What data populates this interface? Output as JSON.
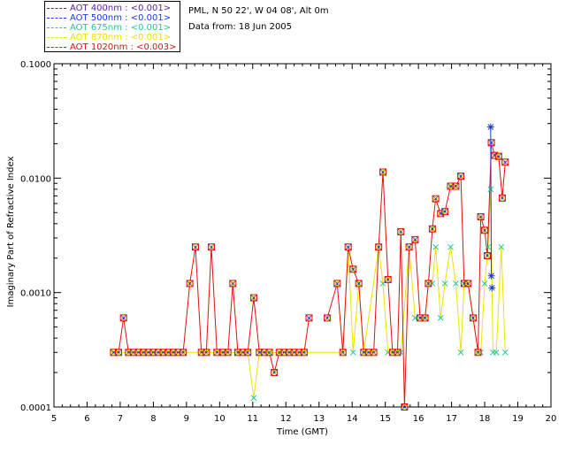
{
  "header": {
    "site": "PML, N 50 22', W 04 08', Alt 0m",
    "date": "Data from: 18 Jun 2005"
  },
  "legend": [
    {
      "label": "AOT  400nm : <0.001>",
      "color": "#5a1ea0"
    },
    {
      "label": "AOT  500nm : <0.001>",
      "color": "#1a3cdc"
    },
    {
      "label": "AOT  675nm : <0.001>",
      "color": "#19c8a0"
    },
    {
      "label": "AOT  870nm : <0.001>",
      "color": "#f0e000"
    },
    {
      "label": "AOT 1020nm : <0.003>",
      "color": "#e01010"
    }
  ],
  "chart_data": {
    "type": "line",
    "title": "",
    "xlabel": "Time (GMT)",
    "ylabel": "Imaginary Part of Refractive Index",
    "xlim": [
      5,
      20
    ],
    "ylim": [
      0.0001,
      0.1
    ],
    "yscale": "log",
    "xticks": [
      "5",
      "6",
      "7",
      "8",
      "9",
      "10",
      "11",
      "12",
      "13",
      "14",
      "15",
      "16",
      "17",
      "18",
      "19",
      "20"
    ],
    "yticks": [
      "0.0001",
      "0.0010",
      "0.0100",
      "0.1000"
    ],
    "series": [
      {
        "name": "AOT 1020nm : <0.003>",
        "color": "#e01010",
        "points": [
          [
            6.8,
            0.0003
          ],
          [
            6.95,
            0.0003
          ],
          [
            7.1,
            0.0006
          ],
          [
            7.25,
            0.0003
          ],
          [
            7.4,
            0.0003
          ],
          [
            7.55,
            0.0003
          ],
          [
            7.7,
            0.0003
          ],
          [
            7.85,
            0.0003
          ],
          [
            8.0,
            0.0003
          ],
          [
            8.15,
            0.0003
          ],
          [
            8.3,
            0.0003
          ],
          [
            8.45,
            0.0003
          ],
          [
            8.6,
            0.0003
          ],
          [
            8.75,
            0.0003
          ],
          [
            8.9,
            0.0003
          ],
          [
            9.1,
            0.0012
          ],
          [
            9.27,
            0.0025
          ],
          [
            9.45,
            0.0003
          ],
          [
            9.6,
            0.0003
          ],
          [
            9.75,
            0.0025
          ],
          [
            9.92,
            0.0003
          ],
          [
            10.1,
            0.0003
          ],
          [
            10.25,
            0.0003
          ],
          [
            10.4,
            0.0012
          ],
          [
            10.55,
            0.0003
          ],
          [
            10.7,
            0.0003
          ],
          [
            10.85,
            0.0003
          ],
          [
            11.03,
            0.0009
          ],
          [
            11.2,
            0.0003
          ],
          [
            11.35,
            0.0003
          ],
          [
            11.5,
            0.0003
          ],
          [
            11.65,
            0.0002
          ],
          [
            11.8,
            0.0003
          ],
          [
            11.95,
            0.0003
          ],
          [
            12.1,
            0.0003
          ],
          [
            12.25,
            0.0003
          ],
          [
            12.4,
            0.0003
          ],
          [
            12.55,
            0.0003
          ],
          [
            12.7,
            0.0006
          ],
          [
            null,
            null
          ],
          [
            13.25,
            0.0006
          ],
          [
            13.55,
            0.0012
          ],
          [
            13.72,
            0.0003
          ],
          [
            13.88,
            0.0025
          ],
          [
            14.03,
            0.0016
          ],
          [
            14.2,
            0.0012
          ],
          [
            14.35,
            0.0003
          ],
          [
            14.5,
            0.0003
          ],
          [
            14.65,
            0.0003
          ],
          [
            14.8,
            0.0025
          ],
          [
            14.93,
            0.0113
          ],
          [
            15.08,
            0.0013
          ],
          [
            15.22,
            0.0003
          ],
          [
            15.37,
            0.0003
          ],
          [
            15.47,
            0.0034
          ],
          [
            15.58,
            0.0001
          ],
          [
            15.72,
            0.0025
          ],
          [
            15.9,
            0.0029
          ],
          [
            16.05,
            0.0006
          ],
          [
            16.2,
            0.0006
          ],
          [
            16.3,
            0.0012
          ],
          [
            16.42,
            0.0036
          ],
          [
            16.52,
            0.0066
          ],
          [
            16.67,
            0.0049
          ],
          [
            16.8,
            0.0051
          ],
          [
            16.97,
            0.0085
          ],
          [
            17.13,
            0.0085
          ],
          [
            17.28,
            0.0104
          ],
          [
            17.38,
            0.0012
          ],
          [
            17.5,
            0.0012
          ],
          [
            17.65,
            0.0006
          ],
          [
            17.8,
            0.0003
          ],
          [
            17.88,
            0.0046
          ],
          [
            18.0,
            0.0035
          ],
          [
            18.08,
            0.0021
          ],
          [
            18.2,
            0.0204
          ],
          [
            18.3,
            0.0158
          ],
          [
            18.42,
            0.0155
          ],
          [
            18.53,
            0.0067
          ],
          [
            18.62,
            0.0138
          ]
        ]
      },
      {
        "name": "AOT  870nm : <0.001>",
        "color": "#f0e000",
        "points": [
          [
            6.8,
            0.0003
          ],
          [
            8.9,
            0.0003
          ],
          [
            10.85,
            0.0003
          ],
          [
            11.03,
            0.00012
          ],
          [
            11.2,
            0.0003
          ],
          [
            13.72,
            0.0003
          ],
          [
            13.88,
            0.0025
          ],
          [
            14.03,
            0.0003
          ],
          [
            14.2,
            0.0012
          ],
          [
            14.35,
            0.0003
          ],
          [
            14.8,
            0.0025
          ],
          [
            14.93,
            0.0012
          ],
          [
            15.08,
            0.0003
          ],
          [
            15.22,
            0.0003
          ],
          [
            15.37,
            0.0003
          ],
          [
            15.47,
            0.0003
          ],
          [
            15.72,
            0.0025
          ],
          [
            15.9,
            0.0006
          ],
          [
            16.2,
            0.0006
          ],
          [
            16.3,
            0.0012
          ],
          [
            16.42,
            0.0012
          ],
          [
            16.52,
            0.0025
          ],
          [
            16.67,
            0.0006
          ],
          [
            16.8,
            0.0012
          ],
          [
            16.97,
            0.0025
          ],
          [
            17.13,
            0.0012
          ],
          [
            17.28,
            0.0003
          ],
          [
            17.38,
            0.0012
          ],
          [
            17.5,
            0.0012
          ],
          [
            17.8,
            0.0003
          ],
          [
            17.88,
            0.0003
          ],
          [
            18.0,
            0.0012
          ],
          [
            18.1,
            0.0025
          ],
          [
            18.18,
            0.008
          ],
          [
            18.25,
            0.0003
          ],
          [
            18.35,
            0.0003
          ],
          [
            18.5,
            0.0025
          ],
          [
            18.62,
            0.0003
          ]
        ]
      }
    ],
    "markers_500nm": [
      [
        18.18,
        0.028
      ],
      [
        18.2,
        0.0014
      ],
      [
        18.22,
        0.0011
      ]
    ]
  }
}
